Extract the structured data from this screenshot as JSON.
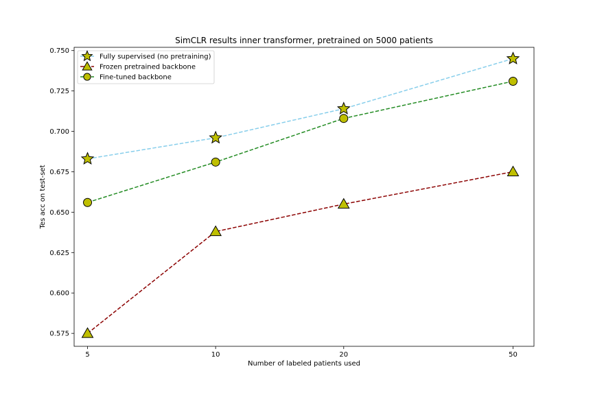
{
  "chart_data": {
    "type": "line",
    "title": "SimCLR results inner transformer, pretrained on 5000 patients",
    "xlabel": "Number of labeled patients used",
    "ylabel": "Tes acc on test-set",
    "x": [
      5,
      10,
      20,
      50
    ],
    "x_tick_labels": [
      "5",
      "10",
      "20",
      "50"
    ],
    "x_scale": "log",
    "xlim": [
      4.65,
      56
    ],
    "ylim": [
      0.567,
      0.752
    ],
    "y_ticks": [
      0.575,
      0.6,
      0.625,
      0.65,
      0.675,
      0.7,
      0.725,
      0.75
    ],
    "y_tick_labels": [
      "0.575",
      "0.600",
      "0.625",
      "0.650",
      "0.675",
      "0.700",
      "0.725",
      "0.750"
    ],
    "grid": false,
    "legend_position": "top-left",
    "marker_fill": "#bfbf00",
    "series": [
      {
        "name": "Fully supervised (no pretraining)",
        "values": [
          0.683,
          0.696,
          0.714,
          0.745
        ],
        "line_color": "#87ceeb",
        "marker": "star"
      },
      {
        "name": "Frozen pretrained backbone",
        "values": [
          0.575,
          0.638,
          0.655,
          0.675
        ],
        "line_color": "#8b0000",
        "marker": "triangle"
      },
      {
        "name": "Fine-tuned backbone",
        "values": [
          0.656,
          0.681,
          0.708,
          0.731
        ],
        "line_color": "#228b22",
        "marker": "circle"
      }
    ]
  }
}
